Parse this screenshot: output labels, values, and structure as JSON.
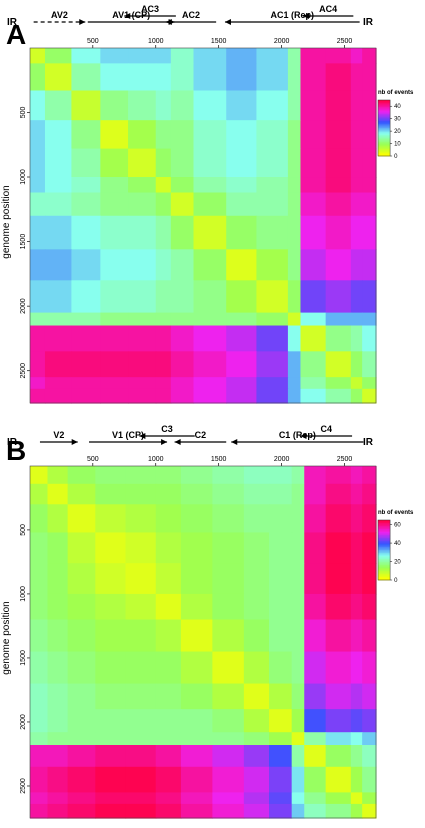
{
  "chart_data": [
    {
      "type": "heatmap",
      "panel": "A",
      "ylabel": "genome position",
      "x_ticks": [
        500,
        1000,
        1500,
        2000,
        2500
      ],
      "y_ticks": [
        500,
        1000,
        1500,
        2000,
        2500
      ],
      "xlim": [
        1,
        2750
      ],
      "ylim": [
        1,
        2750
      ],
      "legend": {
        "title": "nb of events",
        "ticks": [
          0,
          10,
          20,
          30,
          40
        ],
        "range": [
          0,
          45
        ],
        "placement": "right"
      },
      "genes": [
        {
          "label": "IR",
          "start": 0,
          "end": 0,
          "direction": "none"
        },
        {
          "label": "AV2",
          "start": 30,
          "end": 440,
          "direction": "forward",
          "dashed": true
        },
        {
          "label": "AV1 (CP)",
          "start": 460,
          "end": 1150,
          "direction": "forward"
        },
        {
          "label": "AC3",
          "start": 750,
          "end": 1160,
          "direction": "reverse"
        },
        {
          "label": "AC2",
          "start": 1080,
          "end": 1480,
          "direction": "reverse"
        },
        {
          "label": "AC1 (Rep)",
          "start": 1550,
          "end": 2620,
          "direction": "reverse"
        },
        {
          "label": "AC4",
          "start": 2170,
          "end": 2570,
          "direction": "reverse"
        },
        {
          "label": "IR",
          "start": 2750,
          "end": 2750,
          "direction": "none"
        }
      ],
      "segments": [
        1,
        120,
        330,
        560,
        780,
        1000,
        1120,
        1300,
        1560,
        1800,
        2050,
        2150,
        2350,
        2550,
        2640,
        2750
      ],
      "matrix": [
        [
          4,
          10,
          18,
          20,
          20,
          20,
          16,
          20,
          22,
          20,
          14,
          40,
          40,
          38,
          40
        ],
        [
          10,
          4,
          14,
          18,
          18,
          18,
          16,
          20,
          22,
          20,
          14,
          40,
          42,
          40,
          40
        ],
        [
          18,
          14,
          5,
          12,
          14,
          16,
          14,
          18,
          20,
          18,
          14,
          40,
          42,
          40,
          40
        ],
        [
          20,
          18,
          12,
          3,
          8,
          12,
          12,
          16,
          18,
          16,
          12,
          40,
          42,
          40,
          40
        ],
        [
          20,
          18,
          14,
          8,
          4,
          10,
          12,
          16,
          18,
          16,
          12,
          40,
          42,
          40,
          40
        ],
        [
          20,
          18,
          16,
          12,
          10,
          4,
          10,
          14,
          16,
          14,
          12,
          40,
          42,
          40,
          40
        ],
        [
          16,
          16,
          14,
          12,
          12,
          10,
          4,
          10,
          14,
          14,
          12,
          38,
          40,
          38,
          38
        ],
        [
          20,
          20,
          18,
          16,
          16,
          14,
          10,
          4,
          10,
          12,
          12,
          36,
          38,
          36,
          36
        ],
        [
          22,
          22,
          20,
          18,
          18,
          16,
          14,
          10,
          3,
          8,
          12,
          34,
          36,
          34,
          34
        ],
        [
          20,
          20,
          18,
          16,
          16,
          14,
          14,
          12,
          8,
          4,
          10,
          30,
          32,
          30,
          30
        ],
        [
          14,
          14,
          14,
          12,
          12,
          12,
          12,
          12,
          12,
          10,
          4,
          18,
          22,
          22,
          22
        ],
        [
          40,
          40,
          40,
          40,
          40,
          40,
          38,
          36,
          34,
          30,
          18,
          4,
          12,
          14,
          18
        ],
        [
          40,
          42,
          42,
          42,
          42,
          42,
          40,
          38,
          36,
          32,
          22,
          12,
          4,
          10,
          14
        ],
        [
          38,
          40,
          40,
          40,
          40,
          40,
          38,
          36,
          34,
          30,
          22,
          14,
          10,
          5,
          10
        ],
        [
          40,
          40,
          40,
          40,
          40,
          40,
          38,
          36,
          34,
          30,
          22,
          18,
          14,
          10,
          4
        ]
      ]
    },
    {
      "type": "heatmap",
      "panel": "B",
      "ylabel": "genome position",
      "x_ticks": [
        500,
        1000,
        1500,
        2000,
        2500
      ],
      "y_ticks": [
        500,
        1000,
        1500,
        2000,
        2500
      ],
      "xlim": [
        1,
        2750
      ],
      "ylim": [
        1,
        2750
      ],
      "legend": {
        "title": "nb of events",
        "ticks": [
          0,
          20,
          40,
          60
        ],
        "range": [
          0,
          65
        ],
        "placement": "right"
      },
      "genes": [
        {
          "label": "IR",
          "start": 0,
          "end": 0,
          "direction": "none"
        },
        {
          "label": "V2",
          "start": 80,
          "end": 380,
          "direction": "forward"
        },
        {
          "label": "V1 (CP)",
          "start": 470,
          "end": 1090,
          "direction": "forward"
        },
        {
          "label": "C3",
          "start": 870,
          "end": 1310,
          "direction": "reverse"
        },
        {
          "label": "C2",
          "start": 1150,
          "end": 1560,
          "direction": "reverse"
        },
        {
          "label": "C1 (Rep)",
          "start": 1600,
          "end": 2650,
          "direction": "reverse"
        },
        {
          "label": "C4",
          "start": 2150,
          "end": 2560,
          "direction": "reverse"
        },
        {
          "label": "IR",
          "start": 2750,
          "end": 2750,
          "direction": "none"
        }
      ],
      "segments": [
        1,
        140,
        300,
        520,
        760,
        1000,
        1200,
        1450,
        1700,
        1900,
        2080,
        2180,
        2350,
        2550,
        2640,
        2750
      ],
      "matrix": [
        [
          4,
          10,
          14,
          16,
          16,
          16,
          18,
          20,
          22,
          22,
          20,
          56,
          58,
          56,
          58
        ],
        [
          10,
          4,
          10,
          14,
          14,
          14,
          16,
          18,
          20,
          20,
          18,
          56,
          60,
          58,
          60
        ],
        [
          14,
          10,
          4,
          8,
          10,
          12,
          14,
          16,
          18,
          18,
          18,
          58,
          62,
          60,
          62
        ],
        [
          16,
          14,
          8,
          4,
          6,
          10,
          12,
          14,
          16,
          18,
          18,
          60,
          64,
          62,
          64
        ],
        [
          16,
          14,
          10,
          6,
          4,
          8,
          12,
          14,
          16,
          18,
          18,
          60,
          64,
          62,
          64
        ],
        [
          16,
          14,
          12,
          10,
          8,
          4,
          10,
          14,
          16,
          18,
          18,
          58,
          62,
          60,
          62
        ],
        [
          18,
          16,
          14,
          12,
          12,
          10,
          4,
          10,
          14,
          18,
          18,
          54,
          58,
          56,
          58
        ],
        [
          20,
          18,
          16,
          14,
          14,
          14,
          10,
          4,
          10,
          16,
          18,
          50,
          54,
          52,
          54
        ],
        [
          22,
          20,
          18,
          16,
          16,
          16,
          14,
          10,
          4,
          10,
          16,
          46,
          50,
          48,
          50
        ],
        [
          22,
          20,
          18,
          18,
          18,
          18,
          18,
          16,
          10,
          4,
          12,
          40,
          44,
          42,
          44
        ],
        [
          20,
          18,
          18,
          18,
          18,
          18,
          18,
          18,
          16,
          12,
          4,
          20,
          28,
          26,
          30
        ],
        [
          56,
          56,
          58,
          60,
          60,
          58,
          54,
          50,
          46,
          40,
          20,
          4,
          14,
          18,
          22
        ],
        [
          58,
          60,
          62,
          64,
          64,
          62,
          58,
          54,
          50,
          44,
          28,
          14,
          4,
          12,
          18
        ],
        [
          56,
          58,
          60,
          62,
          62,
          60,
          56,
          52,
          48,
          42,
          26,
          18,
          12,
          4,
          12
        ],
        [
          58,
          60,
          62,
          64,
          64,
          62,
          58,
          54,
          50,
          44,
          30,
          22,
          18,
          12,
          4
        ]
      ]
    }
  ],
  "panels": [
    {
      "letter": "A",
      "ylabel": "genome position",
      "legend_title": "nb of events",
      "legend_ticks": [
        "0",
        "10",
        "20",
        "30",
        "40"
      ],
      "x_tick_labels": [
        "500",
        "1000",
        "1500",
        "2000",
        "2500"
      ],
      "y_tick_labels": [
        "500",
        "1000",
        "1500",
        "2000",
        "2500"
      ],
      "gene_labels": [
        "IR",
        "AV2",
        "AV1 (CP)",
        "AC3",
        "AC2",
        "AC1 (Rep)",
        "AC4",
        "IR"
      ]
    },
    {
      "letter": "B",
      "ylabel": "genome position",
      "legend_title": "nb of events",
      "legend_ticks": [
        "0",
        "20",
        "40",
        "60"
      ],
      "x_tick_labels": [
        "500",
        "1000",
        "1500",
        "2000",
        "2500"
      ],
      "y_tick_labels": [
        "500",
        "1000",
        "1500",
        "2000",
        "2500"
      ],
      "gene_labels": [
        "IR",
        "V2",
        "V1 (CP)",
        "C3",
        "C2",
        "C1 (Rep)",
        "C4",
        "IR"
      ]
    }
  ],
  "colors": {
    "scale": [
      "#ffff00",
      "#99ff55",
      "#88ffee",
      "#3355ff",
      "#ee22ee",
      "#ff0044"
    ],
    "ink": "#000000",
    "background": "#ffffff"
  }
}
